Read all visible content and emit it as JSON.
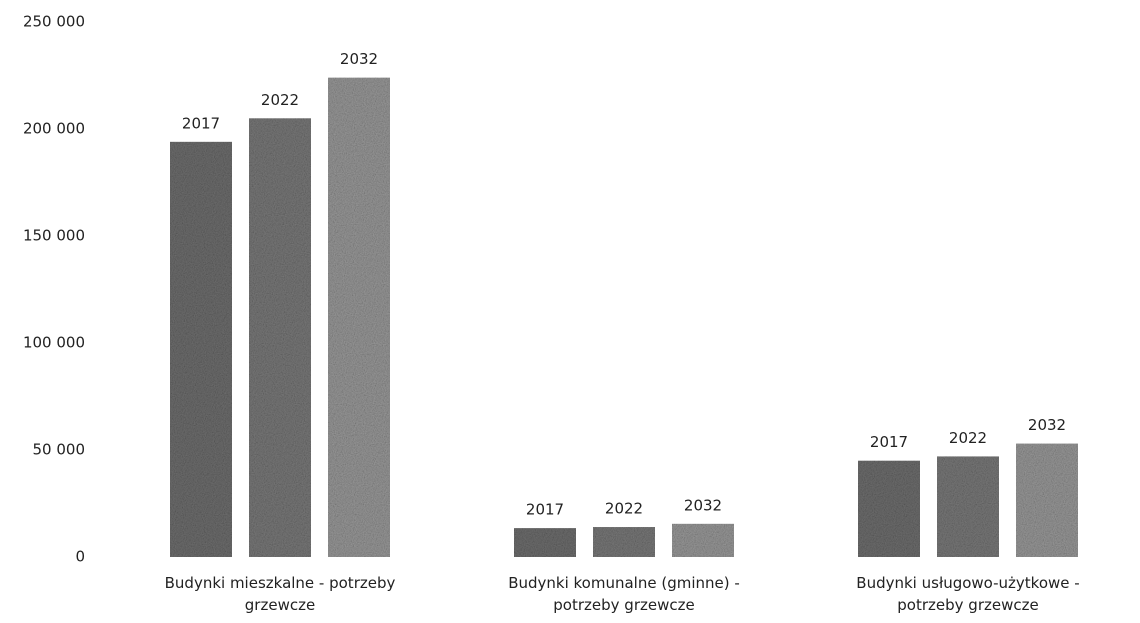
{
  "chart_data": {
    "type": "bar",
    "categories": [
      "Budynki mieszkalne - potrzeby grzewcze",
      "Budynki komunalne (gminne) - potrzeby grzewcze",
      "Budynki usługowo-użytkowe - potrzeby grzewcze"
    ],
    "series": [
      {
        "name": "2017",
        "color": "#6f6f6f",
        "values": [
          194000,
          13500,
          45000
        ]
      },
      {
        "name": "2022",
        "color": "#7a7a7a",
        "values": [
          205000,
          14000,
          47000
        ]
      },
      {
        "name": "2032",
        "color": "#9a9a9a",
        "values": [
          224000,
          15500,
          53000
        ]
      }
    ],
    "ylim": [
      0,
      250000
    ],
    "yticks": [
      0,
      {
        "value": 50000,
        "label": "50 000"
      },
      {
        "value": 100000,
        "label": "100 000"
      },
      {
        "value": 150000,
        "label": "150 000"
      },
      {
        "value": 200000,
        "label": "200 000"
      },
      {
        "value": 250000,
        "label": "250 000"
      }
    ],
    "grid": false
  }
}
